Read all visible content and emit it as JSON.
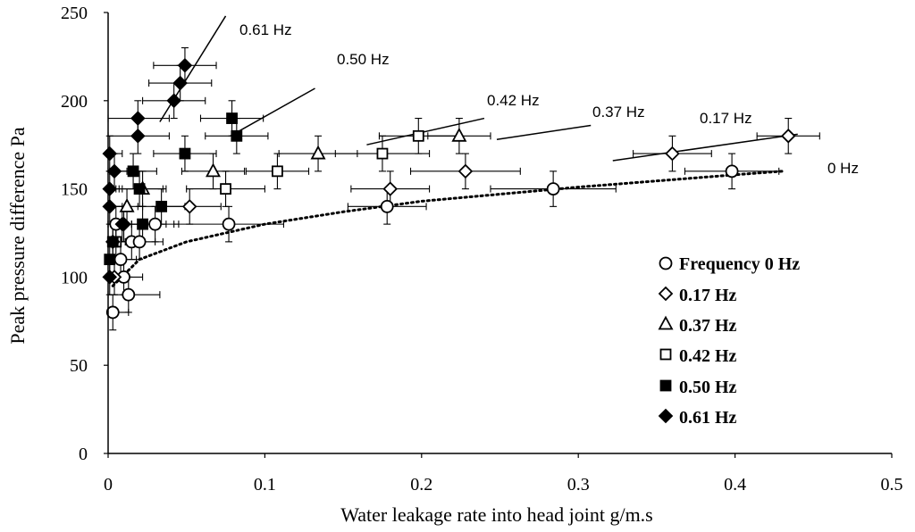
{
  "chart_data": {
    "type": "scatter",
    "title": "",
    "xlabel": "Water leakage rate into head joint  g/m.s",
    "ylabel": "Peak pressure difference  Pa",
    "xlim": [
      0,
      0.5
    ],
    "ylim": [
      0,
      250
    ],
    "xticks": [
      0,
      0.1,
      0.2,
      0.3,
      0.4,
      0.5
    ],
    "xtick_labels": [
      "0",
      "0.1",
      "0.2",
      "0.3",
      "0.4",
      "0.5"
    ],
    "yticks": [
      0,
      50,
      100,
      150,
      200,
      250
    ],
    "ytick_labels": [
      "0",
      "50",
      "100",
      "150",
      "200",
      "250"
    ],
    "grid": false,
    "legend_position": "bottom-right",
    "series": [
      {
        "name": "Frequency 0 Hz",
        "marker": "circle-open",
        "points": [
          {
            "x": 0.003,
            "y": 80,
            "xerr": 0.01,
            "yerr": 10
          },
          {
            "x": 0.013,
            "y": 90,
            "xerr": 0.02,
            "yerr": 10
          },
          {
            "x": 0.01,
            "y": 100,
            "xerr": 0.012,
            "yerr": 10
          },
          {
            "x": 0.008,
            "y": 110,
            "xerr": 0.01,
            "yerr": 10
          },
          {
            "x": 0.015,
            "y": 120,
            "xerr": 0.015,
            "yerr": 10
          },
          {
            "x": 0.02,
            "y": 120,
            "xerr": 0.015,
            "yerr": 10
          },
          {
            "x": 0.005,
            "y": 130,
            "xerr": 0.01,
            "yerr": 10
          },
          {
            "x": 0.03,
            "y": 130,
            "xerr": 0.015,
            "yerr": 10
          },
          {
            "x": 0.077,
            "y": 130,
            "xerr": 0.035,
            "yerr": 10
          },
          {
            "x": 0.178,
            "y": 140,
            "xerr": 0.025,
            "yerr": 10
          },
          {
            "x": 0.284,
            "y": 150,
            "xerr": 0.04,
            "yerr": 10
          },
          {
            "x": 0.398,
            "y": 160,
            "xerr": 0.03,
            "yerr": 10
          }
        ]
      },
      {
        "name": "0.17 Hz",
        "marker": "diamond-open",
        "points": [
          {
            "x": 0.004,
            "y": 100,
            "xerr": 0.008,
            "yerr": 10
          },
          {
            "x": 0.01,
            "y": 130,
            "xerr": 0.01,
            "yerr": 10
          },
          {
            "x": 0.052,
            "y": 140,
            "xerr": 0.02,
            "yerr": 10
          },
          {
            "x": 0.18,
            "y": 150,
            "xerr": 0.025,
            "yerr": 10
          },
          {
            "x": 0.228,
            "y": 160,
            "xerr": 0.035,
            "yerr": 10
          },
          {
            "x": 0.36,
            "y": 170,
            "xerr": 0.025,
            "yerr": 10
          },
          {
            "x": 0.434,
            "y": 180,
            "xerr": 0.02,
            "yerr": 10
          }
        ]
      },
      {
        "name": "0.37 Hz",
        "marker": "triangle-open",
        "points": [
          {
            "x": 0.012,
            "y": 140,
            "xerr": 0.01,
            "yerr": 10
          },
          {
            "x": 0.022,
            "y": 150,
            "xerr": 0.015,
            "yerr": 10
          },
          {
            "x": 0.067,
            "y": 160,
            "xerr": 0.02,
            "yerr": 10
          },
          {
            "x": 0.134,
            "y": 170,
            "xerr": 0.025,
            "yerr": 10
          },
          {
            "x": 0.224,
            "y": 180,
            "xerr": 0.02,
            "yerr": 10
          }
        ]
      },
      {
        "name": "0.42 Hz",
        "marker": "square-open",
        "points": [
          {
            "x": 0.005,
            "y": 120,
            "xerr": 0.01,
            "yerr": 10
          },
          {
            "x": 0.075,
            "y": 150,
            "xerr": 0.025,
            "yerr": 10
          },
          {
            "x": 0.108,
            "y": 160,
            "xerr": 0.02,
            "yerr": 10
          },
          {
            "x": 0.175,
            "y": 170,
            "xerr": 0.03,
            "yerr": 10
          },
          {
            "x": 0.198,
            "y": 180,
            "xerr": 0.025,
            "yerr": 10
          }
        ]
      },
      {
        "name": "0.50 Hz",
        "marker": "square-filled",
        "points": [
          {
            "x": 0.001,
            "y": 110,
            "xerr": 0.005,
            "yerr": 10
          },
          {
            "x": 0.003,
            "y": 120,
            "xerr": 0.008,
            "yerr": 10
          },
          {
            "x": 0.022,
            "y": 130,
            "xerr": 0.015,
            "yerr": 10
          },
          {
            "x": 0.034,
            "y": 140,
            "xerr": 0.015,
            "yerr": 10
          },
          {
            "x": 0.02,
            "y": 150,
            "xerr": 0.015,
            "yerr": 10
          },
          {
            "x": 0.016,
            "y": 160,
            "xerr": 0.015,
            "yerr": 10
          },
          {
            "x": 0.049,
            "y": 170,
            "xerr": 0.02,
            "yerr": 10
          },
          {
            "x": 0.082,
            "y": 180,
            "xerr": 0.02,
            "yerr": 10
          },
          {
            "x": 0.079,
            "y": 190,
            "xerr": 0.02,
            "yerr": 10
          }
        ]
      },
      {
        "name": "0.61 Hz",
        "marker": "diamond-filled",
        "points": [
          {
            "x": 0.001,
            "y": 100,
            "xerr": 0.005,
            "yerr": 10
          },
          {
            "x": 0.003,
            "y": 120,
            "xerr": 0.008,
            "yerr": 10
          },
          {
            "x": 0.009,
            "y": 130,
            "xerr": 0.01,
            "yerr": 10
          },
          {
            "x": 0.001,
            "y": 140,
            "xerr": 0.008,
            "yerr": 10
          },
          {
            "x": 0.001,
            "y": 150,
            "xerr": 0.008,
            "yerr": 10
          },
          {
            "x": 0.004,
            "y": 160,
            "xerr": 0.008,
            "yerr": 10
          },
          {
            "x": 0.001,
            "y": 170,
            "xerr": 0.008,
            "yerr": 10
          },
          {
            "x": 0.019,
            "y": 180,
            "xerr": 0.02,
            "yerr": 10
          },
          {
            "x": 0.019,
            "y": 190,
            "xerr": 0.02,
            "yerr": 10
          },
          {
            "x": 0.042,
            "y": 200,
            "xerr": 0.02,
            "yerr": 10
          },
          {
            "x": 0.046,
            "y": 210,
            "xerr": 0.02,
            "yerr": 10
          },
          {
            "x": 0.049,
            "y": 220,
            "xerr": 0.02,
            "yerr": 10
          }
        ]
      }
    ],
    "trendline_0hz": {
      "style": "dotted",
      "points": [
        [
          0.003,
          95
        ],
        [
          0.02,
          110
        ],
        [
          0.05,
          120
        ],
        [
          0.1,
          130
        ],
        [
          0.15,
          137
        ],
        [
          0.2,
          143
        ],
        [
          0.3,
          151
        ],
        [
          0.4,
          158
        ],
        [
          0.43,
          160
        ]
      ]
    },
    "annotations": [
      {
        "label": "0.61 Hz",
        "line": [
          [
            0.033,
            188
          ],
          [
            0.075,
            248
          ]
        ]
      },
      {
        "label": "0.50 Hz",
        "line": [
          [
            0.078,
            180
          ],
          [
            0.132,
            207
          ]
        ]
      },
      {
        "label": "0.42 Hz",
        "line": [
          [
            0.165,
            175
          ],
          [
            0.24,
            190
          ]
        ]
      },
      {
        "label": "0.37 Hz",
        "line": [
          [
            0.248,
            178
          ],
          [
            0.308,
            186
          ]
        ]
      },
      {
        "label": "0.17 Hz",
        "line": [
          [
            0.322,
            166
          ],
          [
            0.44,
            181
          ]
        ]
      },
      {
        "label": "0 Hz",
        "line": null
      }
    ]
  }
}
